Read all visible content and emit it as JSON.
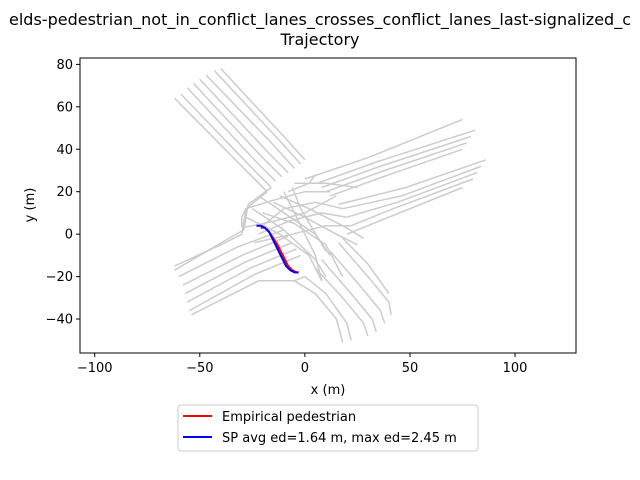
{
  "chart_data": {
    "type": "line",
    "title_line1": "elds-pedestrian_not_in_conflict_lanes_crosses_conflict_lanes_last-signalized_c",
    "title_line2": "Trajectory",
    "xlabel": "x (m)",
    "ylabel": "y (m)",
    "xlim": [
      -107,
      129
    ],
    "ylim": [
      -56,
      83
    ],
    "xticks": [
      -100,
      -50,
      0,
      50,
      100
    ],
    "yticks": [
      -40,
      -20,
      0,
      20,
      40,
      60,
      80
    ],
    "grid": false,
    "legend_position": "below plot, center",
    "lane_color": "#cccccc",
    "lanes": [
      {
        "points": [
          [
            -62,
            64
          ],
          [
            -28,
            30
          ],
          [
            -18,
            20
          ]
        ]
      },
      {
        "points": [
          [
            -59,
            66
          ],
          [
            -26,
            32
          ],
          [
            -16,
            22
          ]
        ]
      },
      {
        "points": [
          [
            -56,
            69
          ],
          [
            -24,
            35
          ],
          [
            -14,
            25
          ]
        ]
      },
      {
        "points": [
          [
            -53,
            71
          ],
          [
            -21,
            37
          ],
          [
            -11,
            27
          ]
        ]
      },
      {
        "points": [
          [
            -50,
            73
          ],
          [
            -18,
            39
          ],
          [
            -8,
            29
          ]
        ]
      },
      {
        "points": [
          [
            -47,
            75
          ],
          [
            -15,
            42
          ],
          [
            -5,
            31
          ]
        ]
      },
      {
        "points": [
          [
            -43,
            77
          ],
          [
            -12,
            44
          ],
          [
            -2,
            33
          ]
        ]
      },
      {
        "points": [
          [
            -40,
            78
          ],
          [
            -10,
            46
          ],
          [
            0,
            35
          ]
        ]
      },
      {
        "points": [
          [
            -18,
            20
          ],
          [
            -28,
            12
          ],
          [
            -30,
            0
          ],
          [
            -40,
            -5
          ],
          [
            -62,
            -15
          ]
        ]
      },
      {
        "points": [
          [
            -16,
            22
          ],
          [
            -27,
            14
          ],
          [
            -29,
            2
          ],
          [
            -38,
            -3
          ],
          [
            -62,
            -17
          ]
        ]
      },
      {
        "points": [
          [
            -28,
            12
          ],
          [
            -30,
            8
          ],
          [
            -30,
            3
          ]
        ]
      },
      {
        "points": [
          [
            -60,
            -20
          ],
          [
            -32,
            -6
          ],
          [
            -10,
            2
          ]
        ]
      },
      {
        "points": [
          [
            -58,
            -24
          ],
          [
            -30,
            -10
          ],
          [
            -8,
            -1
          ]
        ]
      },
      {
        "points": [
          [
            -57,
            -28
          ],
          [
            -28,
            -13
          ],
          [
            -6,
            -4
          ]
        ]
      },
      {
        "points": [
          [
            -56,
            -32
          ],
          [
            -26,
            -16
          ],
          [
            -4,
            -7
          ]
        ]
      },
      {
        "points": [
          [
            -55,
            -36
          ],
          [
            -24,
            -19
          ],
          [
            -2,
            -10
          ]
        ]
      },
      {
        "points": [
          [
            -54,
            -38
          ],
          [
            -22,
            -22
          ],
          [
            -5,
            -22
          ],
          [
            0,
            -20
          ]
        ]
      },
      {
        "points": [
          [
            -5,
            -22
          ],
          [
            5,
            -28
          ],
          [
            15,
            -40
          ],
          [
            18,
            -51
          ]
        ]
      },
      {
        "points": [
          [
            0,
            -20
          ],
          [
            10,
            -28
          ],
          [
            20,
            -42
          ],
          [
            22,
            -50
          ]
        ]
      },
      {
        "points": [
          [
            5,
            -16
          ],
          [
            18,
            -30
          ],
          [
            28,
            -42
          ],
          [
            30,
            -48
          ]
        ]
      },
      {
        "points": [
          [
            8,
            -12
          ],
          [
            22,
            -28
          ],
          [
            32,
            -40
          ],
          [
            34,
            -46
          ]
        ]
      },
      {
        "points": [
          [
            12,
            -8
          ],
          [
            26,
            -24
          ],
          [
            36,
            -36
          ],
          [
            38,
            -42
          ]
        ]
      },
      {
        "points": [
          [
            16,
            -4
          ],
          [
            30,
            -20
          ],
          [
            40,
            -32
          ],
          [
            41,
            -38
          ]
        ]
      },
      {
        "points": [
          [
            18,
            -2
          ],
          [
            30,
            -14
          ],
          [
            40,
            -28
          ]
        ]
      },
      {
        "points": [
          [
            20,
            0
          ],
          [
            40,
            8
          ],
          [
            75,
            22
          ]
        ]
      },
      {
        "points": [
          [
            22,
            4
          ],
          [
            42,
            12
          ],
          [
            80,
            26
          ]
        ]
      },
      {
        "points": [
          [
            20,
            8
          ],
          [
            44,
            15
          ],
          [
            82,
            29
          ]
        ]
      },
      {
        "points": [
          [
            18,
            12
          ],
          [
            46,
            18
          ],
          [
            84,
            32
          ]
        ]
      },
      {
        "points": [
          [
            16,
            14
          ],
          [
            48,
            22
          ],
          [
            86,
            35
          ]
        ]
      },
      {
        "points": [
          [
            12,
            18
          ],
          [
            40,
            28
          ],
          [
            75,
            40
          ]
        ]
      },
      {
        "points": [
          [
            10,
            20
          ],
          [
            38,
            30
          ],
          [
            77,
            43
          ]
        ]
      },
      {
        "points": [
          [
            8,
            22
          ],
          [
            36,
            32
          ],
          [
            79,
            46
          ]
        ]
      },
      {
        "points": [
          [
            6,
            24
          ],
          [
            34,
            34
          ],
          [
            81,
            49
          ]
        ]
      },
      {
        "points": [
          [
            0,
            26
          ],
          [
            30,
            36
          ],
          [
            75,
            54
          ]
        ]
      },
      {
        "points": [
          [
            -5,
            24
          ],
          [
            10,
            24
          ],
          [
            25,
            22
          ]
        ]
      },
      {
        "points": [
          [
            -8,
            20
          ],
          [
            2,
            24
          ],
          [
            5,
            28
          ]
        ]
      },
      {
        "points": [
          [
            -20,
            10
          ],
          [
            -5,
            5
          ],
          [
            10,
            -5
          ],
          [
            18,
            -20
          ]
        ]
      },
      {
        "points": [
          [
            -25,
            12
          ],
          [
            -10,
            2
          ],
          [
            5,
            -12
          ],
          [
            10,
            -20
          ]
        ]
      },
      {
        "points": [
          [
            -28,
            8
          ],
          [
            -12,
            0
          ],
          [
            2,
            -10
          ],
          [
            8,
            -22
          ]
        ]
      },
      {
        "points": [
          [
            -15,
            15
          ],
          [
            0,
            8
          ],
          [
            15,
            0
          ],
          [
            25,
            -5
          ]
        ]
      },
      {
        "points": [
          [
            -12,
            18
          ],
          [
            2,
            12
          ],
          [
            18,
            4
          ],
          [
            28,
            -2
          ]
        ]
      },
      {
        "points": [
          [
            -22,
            18
          ],
          [
            -10,
            10
          ],
          [
            5,
            0
          ],
          [
            12,
            -10
          ]
        ]
      },
      {
        "points": [
          [
            -10,
            20
          ],
          [
            -5,
            10
          ],
          [
            0,
            0
          ],
          [
            5,
            -10
          ],
          [
            8,
            -22
          ]
        ]
      },
      {
        "points": [
          [
            -6,
            22
          ],
          [
            -2,
            12
          ],
          [
            4,
            2
          ],
          [
            10,
            -8
          ]
        ]
      },
      {
        "points": [
          [
            18,
            12
          ],
          [
            5,
            15
          ],
          [
            -10,
            12
          ],
          [
            -20,
            4
          ]
        ]
      },
      {
        "points": [
          [
            20,
            8
          ],
          [
            8,
            10
          ],
          [
            -8,
            6
          ],
          [
            -22,
            0
          ]
        ]
      },
      {
        "points": [
          [
            22,
            4
          ],
          [
            10,
            4
          ],
          [
            -6,
            0
          ],
          [
            -24,
            -4
          ]
        ]
      },
      {
        "points": [
          [
            -30,
            3
          ],
          [
            -15,
            6
          ],
          [
            0,
            10
          ],
          [
            15,
            18
          ]
        ]
      },
      {
        "points": [
          [
            -28,
            12
          ],
          [
            -15,
            16
          ],
          [
            0,
            20
          ],
          [
            12,
            20
          ]
        ]
      }
    ],
    "series": [
      {
        "name": "Empirical pedestrian",
        "color": "#ff0000",
        "x": [
          -21,
          -19,
          -17,
          -15,
          -13,
          -11,
          -10,
          -9,
          -8,
          -7,
          -6,
          -5,
          -4,
          -3
        ],
        "y": [
          3,
          3,
          1,
          -2,
          -5,
          -9,
          -11,
          -13,
          -15,
          -16,
          -17,
          -17.5,
          -18,
          -18
        ]
      },
      {
        "name": "SP avg ed=1.64 m, max ed=2.45 m",
        "color": "#0000ff",
        "x": [
          -23,
          -21,
          -19,
          -17,
          -16,
          -15,
          -14,
          -13,
          -12,
          -11,
          -10,
          -9,
          -8,
          -7,
          -6,
          -5,
          -4,
          -3
        ],
        "y": [
          4,
          4,
          3,
          1,
          -1,
          -3,
          -5,
          -7,
          -9,
          -11,
          -13,
          -15,
          -16,
          -17,
          -17.5,
          -18,
          -18,
          -18
        ]
      }
    ]
  }
}
